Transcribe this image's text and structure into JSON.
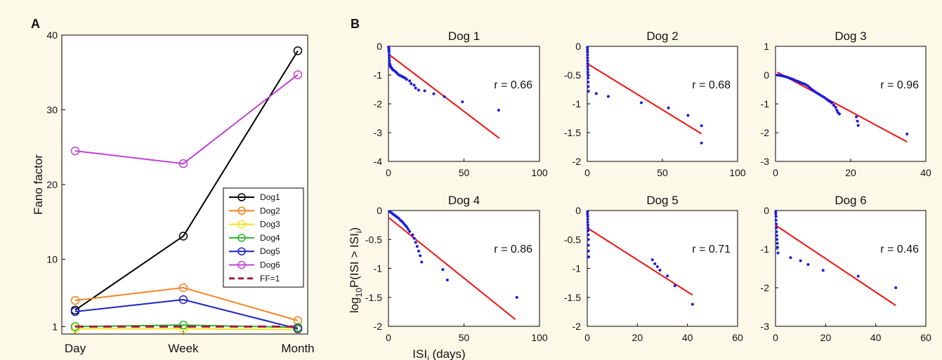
{
  "figure": {
    "panel_a_letter": "A",
    "panel_b_letter": "B",
    "panel_b_ylabel": {
      "main": "log",
      "sub1": "10",
      "mid": "P(ISI > ISI",
      "sub2": "i",
      "end": ")"
    },
    "panel_b_xlabel": {
      "main": "ISI",
      "sub": "i",
      "end": " (days)"
    }
  },
  "chart_data": [
    {
      "type": "line",
      "panel": "A",
      "ylabel": "Fano factor",
      "categories": [
        "Day",
        "Week",
        "Month"
      ],
      "ylim": [
        0,
        40
      ],
      "yticks": [
        1,
        10,
        20,
        30,
        40
      ],
      "legend": "center-right",
      "series": [
        {
          "name": "Dog1",
          "values": [
            3.2,
            13.1,
            37.9
          ],
          "color": "#000000"
        },
        {
          "name": "Dog2",
          "values": [
            4.5,
            6.2,
            1.8
          ],
          "color": "#f5821f"
        },
        {
          "name": "Dog3",
          "values": [
            0.7,
            0.7,
            0.6
          ],
          "color": "#f2e21b"
        },
        {
          "name": "Dog4",
          "values": [
            1.0,
            1.2,
            0.9
          ],
          "color": "#2bb32b"
        },
        {
          "name": "Dog5",
          "values": [
            3.0,
            4.6,
            0.7
          ],
          "color": "#1e22c8"
        },
        {
          "name": "Dog6",
          "values": [
            24.5,
            22.8,
            34.7
          ],
          "color": "#c23fd6"
        },
        {
          "name": "FF=1",
          "values": [
            1,
            1,
            1
          ],
          "color": "#a0203a",
          "dashed": true
        }
      ]
    },
    {
      "type": "scatter",
      "panel": "B",
      "title": "Dog 1",
      "r_label": "r = 0.66",
      "xlim": [
        0,
        100
      ],
      "ylim": [
        -4,
        0
      ],
      "xticks": [
        0,
        50,
        100
      ],
      "yticks": [
        -4,
        -3,
        -2,
        -1,
        0
      ],
      "fit": {
        "x": [
          0,
          73.5
        ],
        "y": [
          -0.27,
          -3.2
        ]
      },
      "x": [
        0.1,
        0.2,
        0.3,
        0.3,
        0.4,
        0.5,
        0.6,
        0.7,
        0.8,
        0.9,
        1.0,
        1.2,
        1.5,
        2,
        2.5,
        3,
        4,
        5,
        6,
        7,
        8,
        9,
        10,
        11,
        12,
        14,
        15,
        17,
        18,
        20,
        24,
        30,
        37,
        49,
        73
      ],
      "y": [
        -0.02,
        -0.05,
        -0.1,
        -0.15,
        -0.2,
        -0.3,
        -0.4,
        -0.5,
        -0.6,
        -0.62,
        -0.65,
        -0.68,
        -0.72,
        -0.75,
        -0.78,
        -0.82,
        -0.85,
        -0.9,
        -0.95,
        -1.0,
        -1.02,
        -1.05,
        -1.08,
        -1.1,
        -1.15,
        -1.2,
        -1.3,
        -1.35,
        -1.45,
        -1.52,
        -1.55,
        -1.65,
        -1.75,
        -1.93,
        -2.22
      ]
    },
    {
      "type": "scatter",
      "panel": "B",
      "title": "Dog 2",
      "r_label": "r = 0.68",
      "xlim": [
        0,
        100
      ],
      "ylim": [
        -2,
        0
      ],
      "xticks": [
        0,
        50,
        100
      ],
      "yticks": [
        -2,
        -1.5,
        -1,
        -0.5,
        0
      ],
      "fit": {
        "x": [
          0,
          76
        ],
        "y": [
          -0.3,
          -1.52
        ]
      },
      "x": [
        0.1,
        0.1,
        0.2,
        0.2,
        0.2,
        0.3,
        0.3,
        0.3,
        0.4,
        0.4,
        0.5,
        0.5,
        0.6,
        0.7,
        0.8,
        6,
        14,
        36,
        54,
        67,
        76,
        76
      ],
      "y": [
        -0.02,
        -0.06,
        -0.1,
        -0.15,
        -0.2,
        -0.25,
        -0.3,
        -0.35,
        -0.4,
        -0.45,
        -0.5,
        -0.55,
        -0.62,
        -0.7,
        -0.78,
        -0.82,
        -0.87,
        -0.98,
        -1.07,
        -1.2,
        -1.38,
        -1.68
      ]
    },
    {
      "type": "scatter",
      "panel": "B",
      "title": "Dog 3",
      "r_label": "r = 0.96",
      "xlim": [
        0,
        40
      ],
      "ylim": [
        -3,
        1
      ],
      "xticks": [
        0,
        20,
        40
      ],
      "yticks": [
        -3,
        -2,
        -1,
        0,
        1
      ],
      "fit": {
        "x": [
          0.5,
          35
        ],
        "y": [
          0.1,
          -2.32
        ]
      },
      "x": [
        0.5,
        1,
        1.5,
        2,
        2.5,
        3,
        3.5,
        4,
        4.5,
        5,
        5.5,
        6,
        6.5,
        7,
        7.5,
        8,
        8.5,
        9,
        9.5,
        10,
        10.5,
        11,
        11.5,
        12,
        12.5,
        13,
        13.5,
        14,
        14.5,
        15,
        15.5,
        16,
        16.3,
        16.6,
        17,
        21.5,
        21.8,
        22,
        35
      ],
      "y": [
        0,
        -0.01,
        -0.02,
        -0.03,
        -0.05,
        -0.07,
        -0.09,
        -0.12,
        -0.14,
        -0.17,
        -0.2,
        -0.22,
        -0.25,
        -0.28,
        -0.3,
        -0.33,
        -0.37,
        -0.42,
        -0.48,
        -0.53,
        -0.58,
        -0.62,
        -0.66,
        -0.7,
        -0.74,
        -0.78,
        -0.83,
        -0.88,
        -0.92,
        -0.97,
        -1.05,
        -1.12,
        -1.22,
        -1.3,
        -1.35,
        -1.45,
        -1.6,
        -1.75,
        -2.05
      ]
    },
    {
      "type": "scatter",
      "panel": "B",
      "title": "Dog 4",
      "r_label": "r = 0.86",
      "xlim": [
        0,
        100
      ],
      "ylim": [
        -2,
        0
      ],
      "xticks": [
        0,
        50,
        100
      ],
      "yticks": [
        -2,
        -1.5,
        -1,
        -0.5,
        0
      ],
      "fit": {
        "x": [
          0,
          84
        ],
        "y": [
          -0.12,
          -1.88
        ]
      },
      "x": [
        1,
        2,
        3,
        4,
        5,
        6,
        7,
        8,
        9,
        10,
        11,
        12,
        13,
        14,
        16,
        17,
        18,
        19,
        20,
        21,
        22,
        36,
        39,
        85
      ],
      "y": [
        -0.02,
        -0.04,
        -0.06,
        -0.08,
        -0.1,
        -0.12,
        -0.14,
        -0.17,
        -0.19,
        -0.22,
        -0.25,
        -0.28,
        -0.32,
        -0.36,
        -0.42,
        -0.48,
        -0.55,
        -0.62,
        -0.7,
        -0.78,
        -0.89,
        -1.02,
        -1.2,
        -1.5
      ]
    },
    {
      "type": "scatter",
      "panel": "B",
      "title": "Dog 5",
      "r_label": "r = 0.71",
      "xlim": [
        0,
        60
      ],
      "ylim": [
        -2,
        0
      ],
      "xticks": [
        0,
        20,
        40,
        60
      ],
      "yticks": [
        -2,
        -1.5,
        -1,
        -0.5,
        0
      ],
      "fit": {
        "x": [
          0,
          42
        ],
        "y": [
          -0.3,
          -1.46
        ]
      },
      "x": [
        0.1,
        0.1,
        0.2,
        0.2,
        0.2,
        0.3,
        0.3,
        0.3,
        0.4,
        0.4,
        0.5,
        0.5,
        0.6,
        26,
        27,
        28,
        29,
        32,
        35,
        42
      ],
      "y": [
        -0.02,
        -0.06,
        -0.1,
        -0.15,
        -0.2,
        -0.25,
        -0.3,
        -0.35,
        -0.42,
        -0.5,
        -0.6,
        -0.7,
        -0.8,
        -0.85,
        -0.92,
        -0.97,
        -1.03,
        -1.13,
        -1.3,
        -1.62
      ]
    },
    {
      "type": "scatter",
      "panel": "B",
      "title": "Dog 6",
      "r_label": "r = 0.46",
      "xlim": [
        0,
        60
      ],
      "ylim": [
        -3,
        0
      ],
      "xticks": [
        0,
        20,
        40,
        60
      ],
      "yticks": [
        -3,
        -2,
        -1,
        0
      ],
      "fit": {
        "x": [
          0,
          48
        ],
        "y": [
          -0.38,
          -2.46
        ]
      },
      "x": [
        0.1,
        0.1,
        0.2,
        0.2,
        0.3,
        0.3,
        0.4,
        0.5,
        0.6,
        0.7,
        0.8,
        1,
        6,
        10,
        13,
        19,
        33,
        48
      ],
      "y": [
        -0.02,
        -0.08,
        -0.15,
        -0.25,
        -0.35,
        -0.45,
        -0.55,
        -0.65,
        -0.75,
        -0.85,
        -0.95,
        -1.1,
        -1.22,
        -1.3,
        -1.4,
        -1.55,
        -1.7,
        -2.0
      ]
    }
  ]
}
